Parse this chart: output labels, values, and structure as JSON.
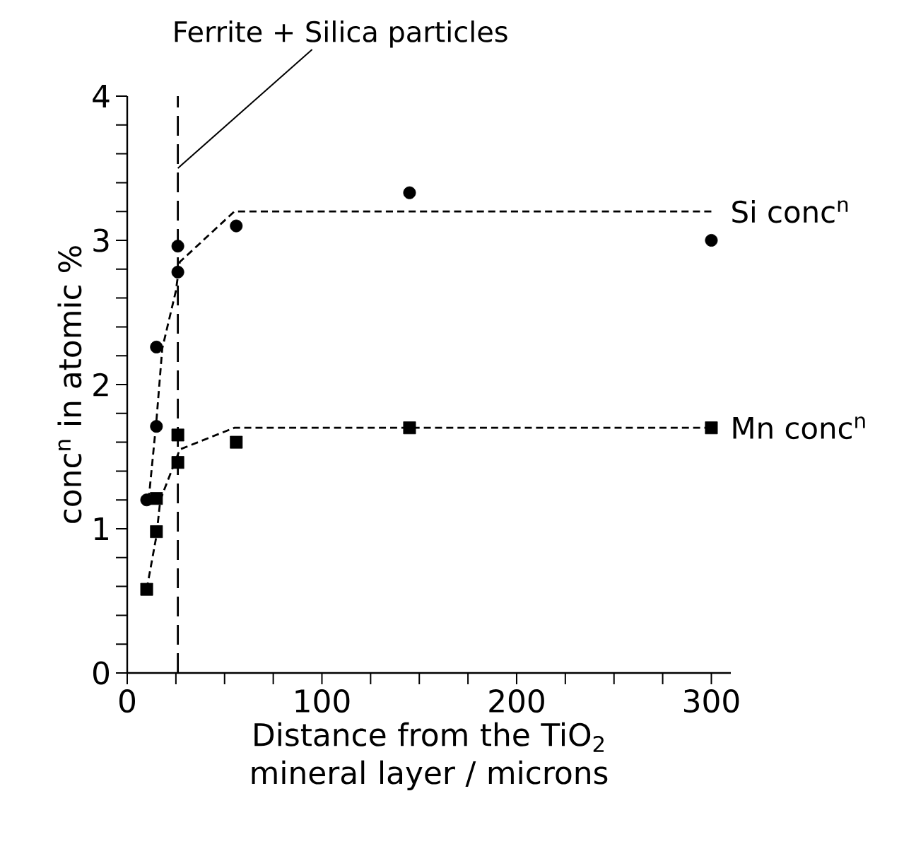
{
  "chart_data": {
    "type": "scatter",
    "xlabel": "Distance from the TiO$_{2}$ mineral layer / microns",
    "ylabel": "conc$^{n}$ in atomic %",
    "xlim": [
      0,
      310
    ],
    "ylim": [
      0,
      4
    ],
    "xticks": [
      0,
      {
        "value": 25,
        "label": null
      },
      {
        "value": 50,
        "label": null
      },
      {
        "value": 75,
        "label": null
      },
      100,
      {
        "value": 125,
        "label": null
      },
      {
        "value": 150,
        "label": null
      },
      {
        "value": 175,
        "label": null
      },
      200,
      {
        "value": 225,
        "label": null
      },
      {
        "value": 250,
        "label": null
      },
      {
        "value": 275,
        "label": null
      },
      300
    ],
    "yticks": [
      0,
      {
        "value": 0.2,
        "label": null
      },
      {
        "value": 0.4,
        "label": null
      },
      {
        "value": 0.6,
        "label": null
      },
      {
        "value": 0.8,
        "label": null
      },
      1,
      {
        "value": 1.2,
        "label": null
      },
      {
        "value": 1.4,
        "label": null
      },
      {
        "value": 1.6,
        "label": null
      },
      {
        "value": 1.8,
        "label": null
      },
      2,
      {
        "value": 2.2,
        "label": null
      },
      {
        "value": 2.4,
        "label": null
      },
      {
        "value": 2.6,
        "label": null
      },
      {
        "value": 2.8,
        "label": null
      },
      3,
      {
        "value": 3.2,
        "label": null
      },
      {
        "value": 3.4,
        "label": null
      },
      {
        "value": 3.6,
        "label": null
      },
      {
        "value": 3.8,
        "label": null
      },
      4
    ],
    "series": [
      {
        "marker": "circle",
        "color": "#000000",
        "x": [
          10,
          15,
          15,
          26,
          26,
          56,
          145,
          300
        ],
        "values": [
          1.2,
          1.71,
          2.26,
          2.78,
          2.96,
          3.1,
          3.33,
          3.0
        ]
      },
      {
        "marker": "square",
        "color": "#000000",
        "x": [
          10,
          15,
          15,
          26,
          26,
          56,
          145,
          300
        ],
        "values": [
          0.58,
          0.98,
          1.21,
          1.46,
          1.65,
          1.6,
          1.7,
          1.7
        ]
      },
      {
        "type": "line",
        "marker": "none",
        "line_style": "dashed",
        "color": "#000000",
        "name": "Si conc$^{n}$",
        "x": [
          11,
          15,
          18,
          25,
          27,
          55,
          300
        ],
        "values": [
          1.2,
          1.75,
          2.25,
          2.65,
          2.85,
          3.2,
          3.2
        ]
      },
      {
        "type": "line",
        "marker": "none",
        "line_style": "dashed",
        "color": "#000000",
        "name": "Mn conc$^{n}$",
        "x": [
          10,
          15,
          17,
          27,
          55,
          300
        ],
        "values": [
          0.58,
          0.95,
          1.2,
          1.55,
          1.7,
          1.7
        ]
      }
    ],
    "ref_lines": [
      {
        "axis": "x",
        "value": 26,
        "line_style": "dashed",
        "color": "#000000"
      }
    ],
    "annotations": [
      {
        "text": "Ferrite + Silica particles",
        "x": 26,
        "y": 3.5
      }
    ]
  }
}
